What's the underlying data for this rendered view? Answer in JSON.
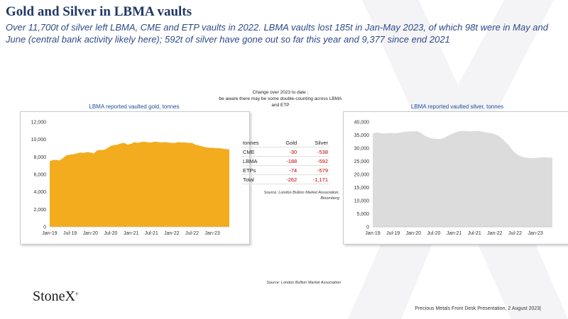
{
  "header": {
    "title": "Gold and Silver in LBMA vaults",
    "subtitle": "Over 11,700t of silver left LBMA, CME and ETP vaults in 2022. LBMA vaults lost 185t in Jan-May 2023, of which 98t were in May and June (central bank activity likely here); 592t of silver have gone out so far this year and 9,377 since end 2021"
  },
  "note": {
    "line1": "Change over 2023 to date ;",
    "line2": "be aware there may be some double-counting across LBMA",
    "line3": "and ETP"
  },
  "change_table": {
    "headers": [
      "tonnes",
      "Gold",
      "Silver"
    ],
    "rows": [
      [
        "CME",
        "-30",
        "-538"
      ],
      [
        "LBMA",
        "-188",
        "-592"
      ],
      [
        "ETPs",
        "-74",
        "-579"
      ],
      [
        "Total",
        "-262",
        "-1,171"
      ]
    ]
  },
  "sources": {
    "table_source_line1": "Source: London Bullion Market Association,",
    "table_source_line2": "Bloomberg",
    "chart_source": "Source: London Bullion Market Association"
  },
  "logo": {
    "text": "StoneX",
    "mark": "®"
  },
  "footer": {
    "text": "Precious Metals Front Desk Presentation, 2 August 2023|"
  },
  "colors": {
    "gold_fill": "#F2AC1E",
    "silver_fill": "#DCDCDC",
    "title_blue": "#1F3864",
    "negative_red": "#C00000"
  },
  "chart_data": [
    {
      "type": "area",
      "title": "LBMA reported vaulted gold, tonnes",
      "x_tick_labels": [
        "Jan-19",
        "Jul-19",
        "Jan-20",
        "Jul-20",
        "Jan-21",
        "Jul-21",
        "Jan-22",
        "Jul-22",
        "Jan-23"
      ],
      "y_tick_labels": [
        "0",
        "2,000",
        "4,000",
        "6,000",
        "8,000",
        "10,000",
        "12,000"
      ],
      "ylim": [
        0,
        12000
      ],
      "grid": false,
      "color": "#F2AC1E",
      "x": [
        "2019-01",
        "2019-02",
        "2019-03",
        "2019-04",
        "2019-05",
        "2019-06",
        "2019-07",
        "2019-08",
        "2019-09",
        "2019-10",
        "2019-11",
        "2019-12",
        "2020-01",
        "2020-02",
        "2020-03",
        "2020-04",
        "2020-05",
        "2020-06",
        "2020-07",
        "2020-08",
        "2020-09",
        "2020-10",
        "2020-11",
        "2020-12",
        "2021-01",
        "2021-02",
        "2021-03",
        "2021-04",
        "2021-05",
        "2021-06",
        "2021-07",
        "2021-08",
        "2021-09",
        "2021-10",
        "2021-11",
        "2021-12",
        "2022-01",
        "2022-02",
        "2022-03",
        "2022-04",
        "2022-05",
        "2022-06",
        "2022-07",
        "2022-08",
        "2022-09",
        "2022-10",
        "2022-11",
        "2022-12",
        "2023-01",
        "2023-02",
        "2023-03",
        "2023-04",
        "2023-05",
        "2023-06"
      ],
      "values": [
        7500,
        7650,
        7650,
        7600,
        7900,
        8200,
        8250,
        8300,
        8400,
        8500,
        8450,
        8550,
        8500,
        8400,
        8750,
        8800,
        8800,
        9000,
        9250,
        9350,
        9400,
        9550,
        9600,
        9400,
        9500,
        9700,
        9600,
        9700,
        9750,
        9650,
        9650,
        9750,
        9700,
        9650,
        9700,
        9650,
        9600,
        9600,
        9700,
        9650,
        9650,
        9600,
        9600,
        9400,
        9300,
        9200,
        9100,
        9050,
        9050,
        9000,
        9000,
        8950,
        8900,
        8850
      ]
    },
    {
      "type": "area",
      "title": "LBMA reported vaulted silver, tonnes",
      "x_tick_labels": [
        "Jan-19",
        "Jul-19",
        "Jan-20",
        "Jul-20",
        "Jan-21",
        "Jul-21",
        "Jan-22",
        "Jul-22",
        "Jan-23"
      ],
      "y_tick_labels": [
        "0",
        "5,000",
        "10,000",
        "15,000",
        "20,000",
        "25,000",
        "30,000",
        "35,000",
        "40,000"
      ],
      "ylim": [
        0,
        40000
      ],
      "grid": false,
      "color": "#DCDCDC",
      "x": [
        "2019-01",
        "2019-02",
        "2019-03",
        "2019-04",
        "2019-05",
        "2019-06",
        "2019-07",
        "2019-08",
        "2019-09",
        "2019-10",
        "2019-11",
        "2019-12",
        "2020-01",
        "2020-02",
        "2020-03",
        "2020-04",
        "2020-05",
        "2020-06",
        "2020-07",
        "2020-08",
        "2020-09",
        "2020-10",
        "2020-11",
        "2020-12",
        "2021-01",
        "2021-02",
        "2021-03",
        "2021-04",
        "2021-05",
        "2021-06",
        "2021-07",
        "2021-08",
        "2021-09",
        "2021-10",
        "2021-11",
        "2021-12",
        "2022-01",
        "2022-02",
        "2022-03",
        "2022-04",
        "2022-05",
        "2022-06",
        "2022-07",
        "2022-08",
        "2022-09",
        "2022-10",
        "2022-11",
        "2022-12",
        "2023-01",
        "2023-02",
        "2023-03",
        "2023-04",
        "2023-05",
        "2023-06"
      ],
      "values": [
        35500,
        36000,
        35800,
        35600,
        35600,
        35800,
        35700,
        35700,
        35900,
        36200,
        36300,
        36400,
        36400,
        36500,
        36000,
        35100,
        34300,
        33900,
        33600,
        33500,
        33400,
        33900,
        34600,
        35200,
        35800,
        36300,
        36600,
        36600,
        36500,
        36400,
        36500,
        36600,
        36400,
        36100,
        35900,
        35700,
        35300,
        34800,
        33800,
        32600,
        31300,
        29600,
        28200,
        27300,
        26800,
        26400,
        26300,
        26200,
        26300,
        26400,
        26500,
        26500,
        26400,
        26400
      ]
    }
  ]
}
